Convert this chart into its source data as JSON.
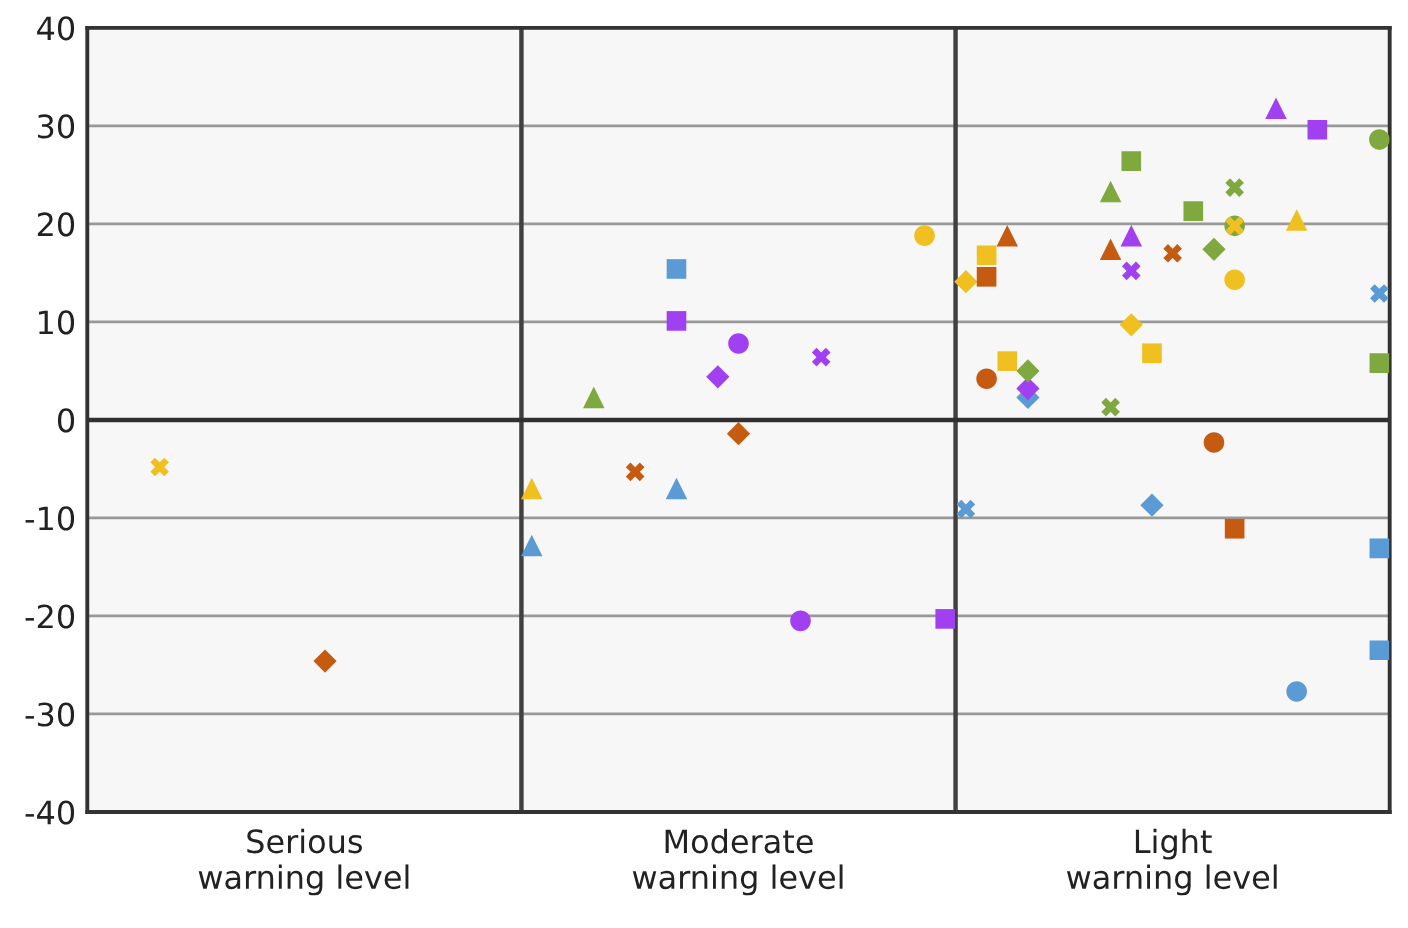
{
  "chart_data": {
    "type": "scatter",
    "categories": [
      null,
      null,
      null,
      null,
      null,
      null,
      null,
      null,
      null,
      null,
      "Serious\nwarning level",
      null,
      null,
      null,
      null,
      null,
      null,
      null,
      null,
      null,
      null,
      null,
      null,
      null,
      null,
      null,
      null,
      null,
      null,
      null,
      null,
      "Moderate\nwarning level",
      null,
      null,
      null,
      null,
      null,
      null,
      null,
      null,
      null,
      null,
      null,
      null,
      null,
      null,
      null,
      null,
      null,
      null,
      null,
      null,
      "Light\nwarning level",
      null,
      null,
      null,
      null,
      null,
      null,
      null,
      null,
      null,
      null
    ],
    "ylim": [
      -40,
      40
    ],
    "yticks": [
      -40,
      -30,
      -20,
      -10,
      0,
      10,
      20,
      30,
      40
    ],
    "grid": "y",
    "ref_lines": [
      {
        "axis": "y",
        "value": 0,
        "color": "#303030"
      }
    ],
    "series": [
      {
        "color": "#f0c020",
        "marker": "cross",
        "values": [
          null,
          null,
          null,
          -4.8,
          null,
          null,
          null,
          null,
          null,
          null,
          null,
          null,
          null,
          null,
          null,
          null,
          null,
          null,
          null,
          null,
          null,
          null,
          null,
          null,
          null,
          null,
          null,
          null,
          null,
          null,
          null,
          null,
          null,
          null,
          null,
          null,
          null,
          null,
          null,
          null,
          null,
          null,
          null,
          null,
          null,
          null,
          null,
          null,
          null,
          null,
          null,
          null,
          null,
          null,
          null,
          19.8,
          null,
          null,
          null,
          null,
          null,
          null,
          null
        ]
      },
      {
        "color": "#f0c020",
        "marker": "triangle",
        "values": [
          null,
          null,
          null,
          null,
          null,
          null,
          null,
          null,
          null,
          null,
          null,
          null,
          null,
          null,
          null,
          null,
          null,
          null,
          null,
          null,
          null,
          -7.0,
          null,
          null,
          null,
          null,
          null,
          null,
          null,
          null,
          null,
          null,
          null,
          null,
          null,
          null,
          null,
          null,
          null,
          null,
          null,
          null,
          null,
          null,
          null,
          null,
          null,
          null,
          null,
          null,
          null,
          null,
          null,
          null,
          null,
          null,
          null,
          null,
          20.4,
          null,
          null,
          null,
          null
        ]
      },
      {
        "color": "#f0c020",
        "marker": "circle",
        "values": [
          null,
          null,
          null,
          null,
          null,
          null,
          null,
          null,
          null,
          null,
          null,
          null,
          null,
          null,
          null,
          null,
          null,
          null,
          null,
          null,
          null,
          null,
          null,
          null,
          null,
          null,
          null,
          null,
          null,
          null,
          null,
          null,
          null,
          null,
          null,
          null,
          null,
          null,
          null,
          null,
          18.8,
          null,
          null,
          null,
          null,
          null,
          null,
          null,
          null,
          null,
          null,
          null,
          null,
          null,
          null,
          14.3,
          null,
          null,
          null,
          null,
          null,
          null,
          null
        ]
      },
      {
        "color": "#f0c020",
        "marker": "square",
        "values": [
          null,
          null,
          null,
          null,
          null,
          null,
          null,
          null,
          null,
          null,
          null,
          null,
          null,
          null,
          null,
          null,
          null,
          null,
          null,
          null,
          null,
          null,
          null,
          null,
          null,
          null,
          null,
          null,
          null,
          null,
          null,
          null,
          null,
          null,
          null,
          null,
          null,
          null,
          null,
          null,
          null,
          null,
          null,
          16.8,
          6.0,
          null,
          null,
          null,
          null,
          null,
          null,
          6.8,
          null,
          null,
          null,
          null,
          null,
          null,
          null,
          null,
          null,
          null,
          null
        ]
      },
      {
        "color": "#f0c020",
        "marker": "diamond",
        "values": [
          null,
          null,
          null,
          null,
          null,
          null,
          null,
          null,
          null,
          null,
          null,
          null,
          null,
          null,
          null,
          null,
          null,
          null,
          null,
          null,
          null,
          null,
          null,
          null,
          null,
          null,
          null,
          null,
          null,
          null,
          null,
          null,
          null,
          null,
          null,
          null,
          null,
          null,
          null,
          null,
          null,
          null,
          14.1,
          null,
          null,
          null,
          null,
          null,
          null,
          null,
          9.7,
          null,
          null,
          null,
          null,
          null,
          null,
          null,
          null,
          null,
          null,
          null,
          null
        ]
      },
      {
        "color": "#c55a11",
        "marker": "diamond",
        "values": [
          null,
          null,
          null,
          null,
          null,
          null,
          null,
          null,
          null,
          null,
          null,
          -24.6,
          null,
          null,
          null,
          null,
          null,
          null,
          null,
          null,
          null,
          null,
          null,
          null,
          null,
          null,
          null,
          null,
          null,
          null,
          null,
          -1.4,
          null,
          null,
          null,
          null,
          null,
          null,
          null,
          null,
          null,
          null,
          null,
          null,
          null,
          null,
          null,
          null,
          null,
          null,
          null,
          null,
          null,
          null,
          null,
          null,
          null,
          null,
          null,
          null,
          null,
          null,
          null
        ]
      },
      {
        "color": "#c55a11",
        "marker": "cross",
        "values": [
          null,
          null,
          null,
          null,
          null,
          null,
          null,
          null,
          null,
          null,
          null,
          null,
          null,
          null,
          null,
          null,
          null,
          null,
          null,
          null,
          null,
          null,
          null,
          null,
          null,
          null,
          -5.3,
          null,
          null,
          null,
          null,
          null,
          null,
          null,
          null,
          null,
          null,
          null,
          null,
          null,
          null,
          null,
          null,
          null,
          null,
          null,
          null,
          null,
          null,
          null,
          null,
          null,
          17.0,
          null,
          null,
          null,
          null,
          null,
          null,
          null,
          null,
          null,
          null
        ]
      },
      {
        "color": "#c55a11",
        "marker": "triangle",
        "values": [
          null,
          null,
          null,
          null,
          null,
          null,
          null,
          null,
          null,
          null,
          null,
          null,
          null,
          null,
          null,
          null,
          null,
          null,
          null,
          null,
          null,
          null,
          null,
          null,
          null,
          null,
          null,
          null,
          null,
          null,
          null,
          null,
          null,
          null,
          null,
          null,
          null,
          null,
          null,
          null,
          null,
          null,
          null,
          null,
          18.8,
          null,
          null,
          null,
          null,
          17.4,
          null,
          null,
          null,
          null,
          null,
          null,
          null,
          null,
          null,
          null,
          null,
          null,
          null
        ]
      },
      {
        "color": "#c55a11",
        "marker": "square",
        "values": [
          null,
          null,
          null,
          null,
          null,
          null,
          null,
          null,
          null,
          null,
          null,
          null,
          null,
          null,
          null,
          null,
          null,
          null,
          null,
          null,
          null,
          null,
          null,
          null,
          null,
          null,
          null,
          null,
          null,
          null,
          null,
          null,
          null,
          null,
          null,
          null,
          null,
          null,
          null,
          null,
          null,
          null,
          null,
          14.6,
          null,
          null,
          null,
          null,
          null,
          null,
          null,
          null,
          null,
          null,
          null,
          -11.1,
          null,
          null,
          null,
          null,
          null,
          null,
          null
        ]
      },
      {
        "color": "#c55a11",
        "marker": "circle",
        "values": [
          null,
          null,
          null,
          null,
          null,
          null,
          null,
          null,
          null,
          null,
          null,
          null,
          null,
          null,
          null,
          null,
          null,
          null,
          null,
          null,
          null,
          null,
          null,
          null,
          null,
          null,
          null,
          null,
          null,
          null,
          null,
          null,
          null,
          null,
          null,
          null,
          null,
          null,
          null,
          null,
          null,
          null,
          null,
          4.2,
          null,
          null,
          null,
          null,
          null,
          null,
          null,
          null,
          null,
          null,
          -2.3,
          null,
          null,
          null,
          null,
          null,
          null,
          null,
          null
        ]
      },
      {
        "color": "#5b9bd5",
        "marker": "square",
        "values": [
          null,
          null,
          null,
          null,
          null,
          null,
          null,
          null,
          null,
          null,
          null,
          null,
          null,
          null,
          null,
          null,
          null,
          null,
          null,
          null,
          null,
          null,
          null,
          null,
          null,
          null,
          null,
          null,
          15.4,
          null,
          null,
          null,
          null,
          null,
          null,
          null,
          null,
          null,
          null,
          null,
          null,
          null,
          null,
          null,
          null,
          null,
          null,
          null,
          null,
          null,
          null,
          null,
          null,
          null,
          null,
          null,
          null,
          null,
          null,
          null,
          null,
          null,
          -13.1
        ]
      },
      {
        "color": "#5b9bd5",
        "marker": "square",
        "values": [
          null,
          null,
          null,
          null,
          null,
          null,
          null,
          null,
          null,
          null,
          null,
          null,
          null,
          null,
          null,
          null,
          null,
          null,
          null,
          null,
          null,
          null,
          null,
          null,
          null,
          null,
          null,
          null,
          null,
          null,
          null,
          null,
          null,
          null,
          null,
          null,
          null,
          null,
          null,
          null,
          null,
          null,
          null,
          null,
          null,
          null,
          null,
          null,
          null,
          null,
          null,
          null,
          null,
          null,
          null,
          null,
          null,
          null,
          null,
          null,
          null,
          null,
          -23.5
        ]
      },
      {
        "color": "#5b9bd5",
        "marker": "triangle",
        "values": [
          null,
          null,
          null,
          null,
          null,
          null,
          null,
          null,
          null,
          null,
          null,
          null,
          null,
          null,
          null,
          null,
          null,
          null,
          null,
          null,
          null,
          -12.8,
          null,
          null,
          null,
          null,
          null,
          null,
          -7.0,
          null,
          null,
          null,
          null,
          null,
          null,
          null,
          null,
          null,
          null,
          null,
          null,
          null,
          null,
          null,
          null,
          null,
          null,
          null,
          null,
          null,
          null,
          null,
          null,
          null,
          null,
          null,
          null,
          null,
          null,
          null,
          null,
          null,
          null
        ]
      },
      {
        "color": "#5b9bd5",
        "marker": "cross",
        "values": [
          null,
          null,
          null,
          null,
          null,
          null,
          null,
          null,
          null,
          null,
          null,
          null,
          null,
          null,
          null,
          null,
          null,
          null,
          null,
          null,
          null,
          null,
          null,
          null,
          null,
          null,
          null,
          null,
          null,
          null,
          null,
          null,
          null,
          null,
          null,
          null,
          null,
          null,
          null,
          null,
          null,
          null,
          -9.1,
          null,
          null,
          null,
          null,
          null,
          null,
          null,
          null,
          null,
          null,
          null,
          null,
          null,
          null,
          null,
          null,
          null,
          null,
          null,
          12.9
        ]
      },
      {
        "color": "#5b9bd5",
        "marker": "diamond",
        "values": [
          null,
          null,
          null,
          null,
          null,
          null,
          null,
          null,
          null,
          null,
          null,
          null,
          null,
          null,
          null,
          null,
          null,
          null,
          null,
          null,
          null,
          null,
          null,
          null,
          null,
          null,
          null,
          null,
          null,
          null,
          null,
          null,
          null,
          null,
          null,
          null,
          null,
          null,
          null,
          null,
          null,
          null,
          null,
          null,
          null,
          2.3,
          null,
          null,
          null,
          null,
          null,
          -8.7,
          null,
          null,
          null,
          null,
          null,
          null,
          null,
          null,
          null,
          null,
          null
        ]
      },
      {
        "color": "#5b9bd5",
        "marker": "circle",
        "values": [
          null,
          null,
          null,
          null,
          null,
          null,
          null,
          null,
          null,
          null,
          null,
          null,
          null,
          null,
          null,
          null,
          null,
          null,
          null,
          null,
          null,
          null,
          null,
          null,
          null,
          null,
          null,
          null,
          null,
          null,
          null,
          null,
          null,
          null,
          null,
          null,
          null,
          null,
          null,
          null,
          null,
          null,
          null,
          null,
          null,
          null,
          null,
          null,
          null,
          null,
          null,
          null,
          null,
          null,
          null,
          null,
          null,
          null,
          -27.7,
          null,
          null,
          null,
          null
        ]
      },
      {
        "color": "#a040f0",
        "marker": "square",
        "values": [
          null,
          null,
          null,
          null,
          null,
          null,
          null,
          null,
          null,
          null,
          null,
          null,
          null,
          null,
          null,
          null,
          null,
          null,
          null,
          null,
          null,
          null,
          null,
          null,
          null,
          null,
          null,
          null,
          10.1,
          null,
          null,
          null,
          null,
          null,
          null,
          null,
          null,
          null,
          null,
          null,
          null,
          -20.3,
          null,
          null,
          null,
          null,
          null,
          null,
          null,
          null,
          null,
          null,
          null,
          null,
          null,
          null,
          null,
          null,
          null,
          29.6,
          null,
          null,
          null
        ]
      },
      {
        "color": "#a040f0",
        "marker": "circle",
        "values": [
          null,
          null,
          null,
          null,
          null,
          null,
          null,
          null,
          null,
          null,
          null,
          null,
          null,
          null,
          null,
          null,
          null,
          null,
          null,
          null,
          null,
          null,
          null,
          null,
          null,
          null,
          null,
          null,
          null,
          null,
          null,
          7.8,
          null,
          null,
          -20.5,
          null,
          null,
          null,
          null,
          null,
          null,
          null,
          null,
          null,
          null,
          null,
          null,
          null,
          null,
          null,
          null,
          null,
          null,
          null,
          null,
          null,
          null,
          null,
          null,
          null,
          null,
          null,
          null
        ]
      },
      {
        "color": "#a040f0",
        "marker": "cross",
        "values": [
          null,
          null,
          null,
          null,
          null,
          null,
          null,
          null,
          null,
          null,
          null,
          null,
          null,
          null,
          null,
          null,
          null,
          null,
          null,
          null,
          null,
          null,
          null,
          null,
          null,
          null,
          null,
          null,
          null,
          null,
          null,
          null,
          null,
          null,
          null,
          6.4,
          null,
          null,
          null,
          null,
          null,
          null,
          null,
          null,
          null,
          null,
          null,
          null,
          null,
          null,
          15.2,
          null,
          null,
          null,
          null,
          null,
          null,
          null,
          null,
          null,
          null,
          null,
          null
        ]
      },
      {
        "color": "#a040f0",
        "marker": "diamond",
        "values": [
          null,
          null,
          null,
          null,
          null,
          null,
          null,
          null,
          null,
          null,
          null,
          null,
          null,
          null,
          null,
          null,
          null,
          null,
          null,
          null,
          null,
          null,
          null,
          null,
          null,
          null,
          null,
          null,
          null,
          null,
          4.4,
          null,
          null,
          null,
          null,
          null,
          null,
          null,
          null,
          null,
          null,
          null,
          null,
          null,
          null,
          3.2,
          null,
          null,
          null,
          null,
          null,
          null,
          null,
          null,
          null,
          null,
          null,
          null,
          null,
          null,
          null,
          null,
          null
        ]
      },
      {
        "color": "#a040f0",
        "marker": "triangle",
        "values": [
          null,
          null,
          null,
          null,
          null,
          null,
          null,
          null,
          null,
          null,
          null,
          null,
          null,
          null,
          null,
          null,
          null,
          null,
          null,
          null,
          null,
          null,
          null,
          null,
          null,
          null,
          null,
          null,
          null,
          null,
          null,
          null,
          null,
          null,
          null,
          null,
          null,
          null,
          null,
          null,
          null,
          null,
          null,
          null,
          null,
          null,
          null,
          null,
          null,
          null,
          18.8,
          null,
          null,
          null,
          null,
          null,
          null,
          31.8,
          null,
          null,
          null,
          null,
          null
        ]
      },
      {
        "color": "#7fa83e",
        "marker": "triangle",
        "values": [
          null,
          null,
          null,
          null,
          null,
          null,
          null,
          null,
          null,
          null,
          null,
          null,
          null,
          null,
          null,
          null,
          null,
          null,
          null,
          null,
          null,
          null,
          null,
          null,
          2.3,
          null,
          null,
          null,
          null,
          null,
          null,
          null,
          null,
          null,
          null,
          null,
          null,
          null,
          null,
          null,
          null,
          null,
          null,
          null,
          null,
          null,
          null,
          null,
          null,
          23.3,
          null,
          null,
          null,
          null,
          null,
          null,
          null,
          null,
          null,
          null,
          null,
          null,
          null
        ]
      },
      {
        "color": "#7fa83e",
        "marker": "square",
        "values": [
          null,
          null,
          null,
          null,
          null,
          null,
          null,
          null,
          null,
          null,
          null,
          null,
          null,
          null,
          null,
          null,
          null,
          null,
          null,
          null,
          null,
          null,
          null,
          null,
          null,
          null,
          null,
          null,
          null,
          null,
          null,
          null,
          null,
          null,
          null,
          null,
          null,
          null,
          null,
          null,
          null,
          null,
          null,
          null,
          null,
          null,
          null,
          null,
          null,
          null,
          26.4,
          null,
          null,
          21.3,
          null,
          null,
          null,
          null,
          null,
          null,
          null,
          null,
          5.8
        ]
      },
      {
        "color": "#7fa83e",
        "marker": "diamond",
        "values": [
          null,
          null,
          null,
          null,
          null,
          null,
          null,
          null,
          null,
          null,
          null,
          null,
          null,
          null,
          null,
          null,
          null,
          null,
          null,
          null,
          null,
          null,
          null,
          null,
          null,
          null,
          null,
          null,
          null,
          null,
          null,
          null,
          null,
          null,
          null,
          null,
          null,
          null,
          null,
          null,
          null,
          null,
          null,
          null,
          null,
          5.0,
          null,
          null,
          null,
          null,
          null,
          null,
          null,
          null,
          17.4,
          null,
          null,
          null,
          null,
          null,
          null,
          null,
          null
        ]
      },
      {
        "color": "#7fa83e",
        "marker": "cross",
        "values": [
          null,
          null,
          null,
          null,
          null,
          null,
          null,
          null,
          null,
          null,
          null,
          null,
          null,
          null,
          null,
          null,
          null,
          null,
          null,
          null,
          null,
          null,
          null,
          null,
          null,
          null,
          null,
          null,
          null,
          null,
          null,
          null,
          null,
          null,
          null,
          null,
          null,
          null,
          null,
          null,
          null,
          null,
          null,
          null,
          null,
          null,
          null,
          null,
          null,
          1.3,
          null,
          null,
          null,
          null,
          null,
          23.7,
          null,
          null,
          null,
          null,
          null,
          null,
          null
        ]
      },
      {
        "color": "#7fa83e",
        "marker": "circle",
        "values": [
          null,
          null,
          null,
          null,
          null,
          null,
          null,
          null,
          null,
          null,
          null,
          null,
          null,
          null,
          null,
          null,
          null,
          null,
          null,
          null,
          null,
          null,
          null,
          null,
          null,
          null,
          null,
          null,
          null,
          null,
          null,
          null,
          null,
          null,
          null,
          null,
          null,
          null,
          null,
          null,
          null,
          null,
          null,
          null,
          null,
          null,
          null,
          null,
          null,
          null,
          null,
          null,
          null,
          null,
          null,
          19.8,
          null,
          null,
          null,
          null,
          null,
          null,
          28.6
        ]
      }
    ]
  }
}
